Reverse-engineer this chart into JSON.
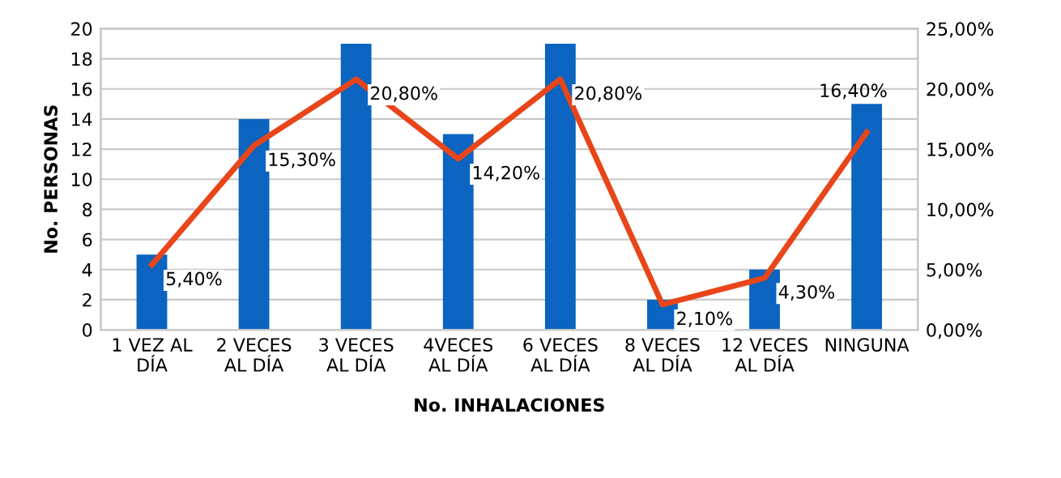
{
  "chart_data": {
    "type": "bar",
    "xlabel": "No. INHALACIONES",
    "ylabel": "No. PERSONAS",
    "categories": [
      "1 VEZ AL\nDÍA",
      "2 VECES\nAL DÍA",
      "3 VECES\nAL DÍA",
      "4VECES\nAL DÍA",
      "6 VECES\nAL DÍA",
      "8 VECES\nAL DÍA",
      "12 VECES\nAL DÍA",
      "NINGUNA"
    ],
    "series": [
      {
        "color": "#0a64c0",
        "values": [
          5,
          14,
          19,
          13,
          19,
          2,
          4,
          15
        ]
      },
      {
        "type": "line",
        "axis": "y2",
        "color": "#e8461a",
        "values": [
          5.4,
          15.3,
          20.8,
          14.2,
          20.8,
          2.1,
          4.3,
          16.4
        ],
        "value_labels": [
          "5,40%",
          "15,30%",
          "20,80%",
          "14,20%",
          "20,80%",
          "2,10%",
          "4,30%",
          "16,40%"
        ]
      }
    ],
    "ylim": [
      0,
      20
    ],
    "yticks": [
      0,
      2,
      4,
      6,
      8,
      10,
      12,
      14,
      16,
      18,
      20
    ],
    "y2lim": [
      0,
      25
    ],
    "y2ticks": [
      {
        "value": 0,
        "label": "0,00%"
      },
      {
        "value": 5,
        "label": "5,00%"
      },
      {
        "value": 10,
        "label": "10,00%"
      },
      {
        "value": 15,
        "label": "15,00%"
      },
      {
        "value": 20,
        "label": "20,00%"
      },
      {
        "value": 25,
        "label": "25,00%"
      }
    ],
    "grid": "y",
    "marker": "none",
    "legend": false
  }
}
